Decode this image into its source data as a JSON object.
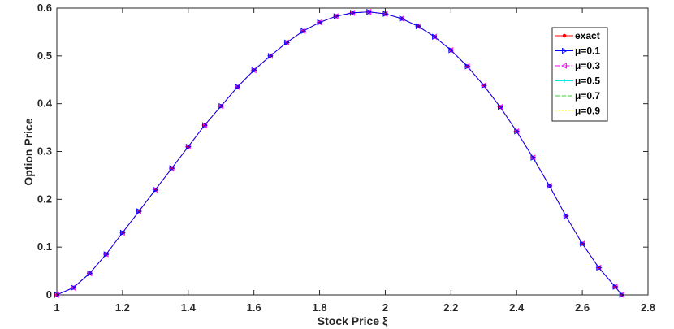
{
  "chart_data": {
    "type": "line",
    "title": "",
    "xlabel": "Stock Price ξ",
    "ylabel": "Option Price",
    "xlim": [
      1,
      2.8
    ],
    "ylim": [
      0,
      0.6
    ],
    "xticks": [
      "1",
      "1.2",
      "1.4",
      "1.6",
      "1.8",
      "2",
      "2.2",
      "2.4",
      "2.6",
      "2.8"
    ],
    "yticks": [
      "0",
      "0.1",
      "0.2",
      "0.3",
      "0.4",
      "0.5",
      "0.6"
    ],
    "grid": false,
    "legend_position": "top-right",
    "x": [
      1.0,
      1.05,
      1.1,
      1.15,
      1.2,
      1.25,
      1.3,
      1.35,
      1.4,
      1.45,
      1.5,
      1.55,
      1.6,
      1.65,
      1.7,
      1.75,
      1.8,
      1.85,
      1.9,
      1.95,
      2.0,
      2.05,
      2.1,
      2.15,
      2.2,
      2.25,
      2.3,
      2.35,
      2.4,
      2.45,
      2.5,
      2.55,
      2.6,
      2.65,
      2.7,
      2.72
    ],
    "series": [
      {
        "name": "exact",
        "color": "#ff0000",
        "marker": "dot",
        "dash": "solid",
        "values": [
          0.0,
          0.015,
          0.045,
          0.085,
          0.13,
          0.175,
          0.22,
          0.265,
          0.31,
          0.355,
          0.395,
          0.435,
          0.47,
          0.5,
          0.528,
          0.552,
          0.57,
          0.583,
          0.59,
          0.592,
          0.588,
          0.578,
          0.562,
          0.54,
          0.512,
          0.478,
          0.438,
          0.393,
          0.342,
          0.287,
          0.228,
          0.165,
          0.107,
          0.057,
          0.017,
          0.0
        ]
      },
      {
        "name": "μ=0.1",
        "color": "#0000ff",
        "marker": "triangle-right",
        "dash": "solid",
        "values": null
      },
      {
        "name": "μ=0.3",
        "color": "#ff00ff",
        "marker": "triangle-left",
        "dash": "dashdot",
        "values": null
      },
      {
        "name": "μ=0.5",
        "color": "#00e5e5",
        "marker": "plus",
        "dash": "solid",
        "values": null
      },
      {
        "name": "μ=0.7",
        "color": "#33cc33",
        "marker": "none",
        "dash": "dashed",
        "values": null
      },
      {
        "name": "μ=0.9",
        "color": "#ffff66",
        "marker": "none",
        "dash": "dotted",
        "values": null
      }
    ],
    "note_series_identical": true
  }
}
